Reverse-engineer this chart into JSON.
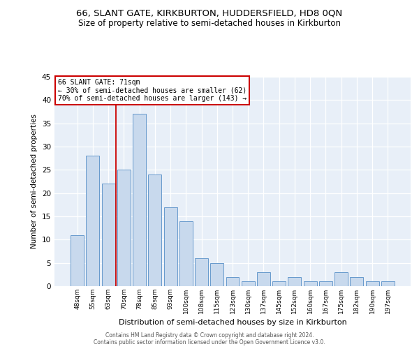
{
  "title": "66, SLANT GATE, KIRKBURTON, HUDDERSFIELD, HD8 0QN",
  "subtitle": "Size of property relative to semi-detached houses in Kirkburton",
  "xlabel": "Distribution of semi-detached houses by size in Kirkburton",
  "ylabel": "Number of semi-detached properties",
  "categories": [
    "48sqm",
    "55sqm",
    "63sqm",
    "70sqm",
    "78sqm",
    "85sqm",
    "93sqm",
    "100sqm",
    "108sqm",
    "115sqm",
    "123sqm",
    "130sqm",
    "137sqm",
    "145sqm",
    "152sqm",
    "160sqm",
    "167sqm",
    "175sqm",
    "182sqm",
    "190sqm",
    "197sqm"
  ],
  "values": [
    11,
    28,
    22,
    25,
    37,
    24,
    17,
    14,
    6,
    5,
    2,
    1,
    3,
    1,
    2,
    1,
    1,
    3,
    2,
    1,
    1
  ],
  "bar_color": "#c8d9ed",
  "bar_edge_color": "#6699cc",
  "vline_x": 2.5,
  "annotation_text": "66 SLANT GATE: 71sqm\n← 30% of semi-detached houses are smaller (62)\n70% of semi-detached houses are larger (143) →",
  "annotation_box_color": "white",
  "annotation_box_edge_color": "#cc0000",
  "vline_color": "#cc0000",
  "ylim": [
    0,
    45
  ],
  "yticks": [
    0,
    5,
    10,
    15,
    20,
    25,
    30,
    35,
    40,
    45
  ],
  "footer_line1": "Contains HM Land Registry data © Crown copyright and database right 2024.",
  "footer_line2": "Contains public sector information licensed under the Open Government Licence v3.0.",
  "background_color": "#e8eff8",
  "title_fontsize": 9.5,
  "subtitle_fontsize": 8.5,
  "title_fontweight": "normal"
}
